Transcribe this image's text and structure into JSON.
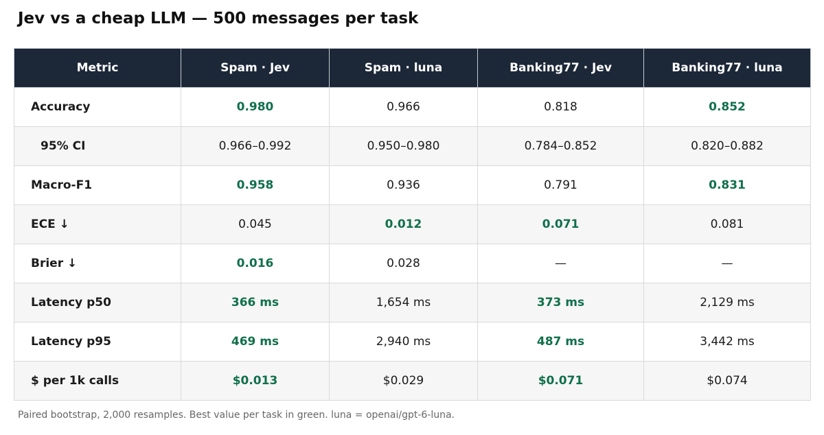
{
  "title": "Jev vs a cheap LLM — 500 messages per task",
  "colors": {
    "header_bg": "#1c2838",
    "best": "#10704b",
    "row_alt": "#f6f6f6"
  },
  "chart_data": {
    "type": "table",
    "columns": [
      "Metric",
      "Spam · Jev",
      "Spam · luna",
      "Banking77 · Jev",
      "Banking77 · luna"
    ],
    "rows": [
      {
        "metric": "Accuracy",
        "indent": false,
        "cells": [
          {
            "text": "0.980",
            "best": true
          },
          {
            "text": "0.966",
            "best": false
          },
          {
            "text": "0.818",
            "best": false
          },
          {
            "text": "0.852",
            "best": true
          }
        ]
      },
      {
        "metric": "95% CI",
        "indent": true,
        "cells": [
          {
            "text": "0.966–0.992",
            "best": false
          },
          {
            "text": "0.950–0.980",
            "best": false
          },
          {
            "text": "0.784–0.852",
            "best": false
          },
          {
            "text": "0.820–0.882",
            "best": false
          }
        ]
      },
      {
        "metric": "Macro-F1",
        "indent": false,
        "cells": [
          {
            "text": "0.958",
            "best": true
          },
          {
            "text": "0.936",
            "best": false
          },
          {
            "text": "0.791",
            "best": false
          },
          {
            "text": "0.831",
            "best": true
          }
        ]
      },
      {
        "metric": "ECE ↓",
        "indent": false,
        "cells": [
          {
            "text": "0.045",
            "best": false
          },
          {
            "text": "0.012",
            "best": true
          },
          {
            "text": "0.071",
            "best": true
          },
          {
            "text": "0.081",
            "best": false
          }
        ]
      },
      {
        "metric": "Brier ↓",
        "indent": false,
        "cells": [
          {
            "text": "0.016",
            "best": true
          },
          {
            "text": "0.028",
            "best": false
          },
          {
            "text": "—",
            "best": false
          },
          {
            "text": "—",
            "best": false
          }
        ]
      },
      {
        "metric": "Latency p50",
        "indent": false,
        "cells": [
          {
            "text": "366 ms",
            "best": true
          },
          {
            "text": "1,654 ms",
            "best": false
          },
          {
            "text": "373 ms",
            "best": true
          },
          {
            "text": "2,129 ms",
            "best": false
          }
        ]
      },
      {
        "metric": "Latency p95",
        "indent": false,
        "cells": [
          {
            "text": "469 ms",
            "best": true
          },
          {
            "text": "2,940 ms",
            "best": false
          },
          {
            "text": "487 ms",
            "best": true
          },
          {
            "text": "3,442 ms",
            "best": false
          }
        ]
      },
      {
        "metric": "$ per 1k calls",
        "indent": false,
        "cells": [
          {
            "text": "$0.013",
            "best": true
          },
          {
            "text": "$0.029",
            "best": false
          },
          {
            "text": "$0.071",
            "best": true
          },
          {
            "text": "$0.074",
            "best": false
          }
        ]
      }
    ]
  },
  "footnote": "Paired bootstrap, 2,000 resamples. Best value per task in green. luna = openai/gpt-6-luna."
}
